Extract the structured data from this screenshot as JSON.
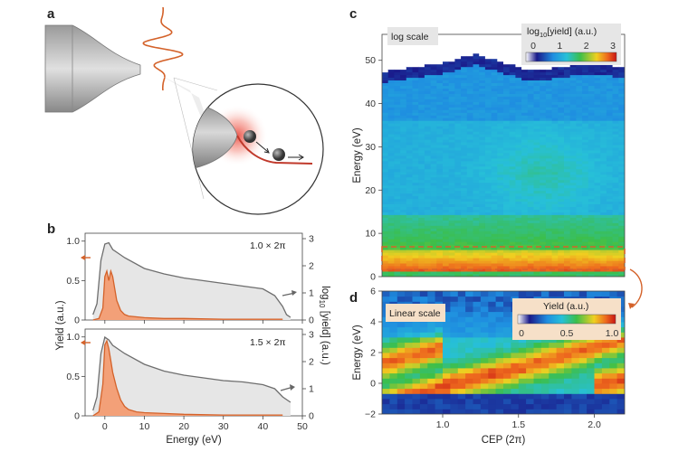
{
  "panels": {
    "a": "a",
    "b": "b",
    "c": "c",
    "d": "d"
  },
  "colors": {
    "orange": "#d4622a",
    "orange_fill": "#f3a078",
    "gray_line": "#6e6e6e",
    "gray_fill": "#e6e6e6",
    "tip_gray": "#9a9a9a"
  },
  "chart_data": [
    {
      "id": "b-top",
      "type": "line",
      "annotation": "1.0 × 2π",
      "xlim": [
        -5,
        50
      ],
      "ylim_left": [
        0,
        1.1
      ],
      "ylim_right": [
        0,
        3.2
      ],
      "series": [
        {
          "name": "yield (linear)",
          "axis": "left",
          "x": [
            -3,
            -1.5,
            -0.5,
            0,
            0.5,
            1,
            1.5,
            2,
            2.5,
            3,
            4,
            5,
            6,
            8,
            10,
            15,
            20,
            30,
            40,
            45
          ],
          "y": [
            0,
            0.02,
            0.15,
            0.55,
            0.62,
            0.5,
            0.62,
            0.55,
            0.4,
            0.25,
            0.12,
            0.07,
            0.05,
            0.04,
            0.03,
            0.02,
            0.02,
            0.01,
            0.01,
            0.01
          ]
        },
        {
          "name": "log10 yield",
          "axis": "right",
          "x": [
            -3,
            -2,
            -1,
            0,
            1,
            2,
            3,
            5,
            10,
            15,
            20,
            25,
            30,
            35,
            40,
            43,
            45,
            46,
            47
          ],
          "y": [
            0.2,
            0.6,
            2.2,
            2.8,
            2.85,
            2.6,
            2.5,
            2.3,
            1.9,
            1.7,
            1.55,
            1.45,
            1.35,
            1.25,
            1.15,
            0.9,
            0.5,
            0.2,
            0.1
          ]
        }
      ]
    },
    {
      "id": "b-bottom",
      "type": "line",
      "annotation": "1.5 × 2π",
      "xlim": [
        -5,
        50
      ],
      "ylim_left": [
        0,
        1.1
      ],
      "ylim_right": [
        0,
        3.2
      ],
      "series": [
        {
          "name": "yield (linear)",
          "axis": "left",
          "x": [
            -3,
            -1.5,
            -0.5,
            0,
            0.5,
            1,
            1.5,
            2,
            3,
            4,
            5,
            6,
            8,
            10,
            15,
            20,
            30,
            40,
            45
          ],
          "y": [
            0,
            0.05,
            0.4,
            0.9,
            0.95,
            0.85,
            0.7,
            0.55,
            0.35,
            0.2,
            0.12,
            0.08,
            0.05,
            0.04,
            0.03,
            0.02,
            0.01,
            0.01,
            0.01
          ]
        },
        {
          "name": "log10 yield",
          "axis": "right",
          "x": [
            -3,
            -2,
            -1,
            0,
            1,
            2,
            3,
            5,
            10,
            15,
            20,
            25,
            30,
            35,
            40,
            43,
            45,
            46,
            47
          ],
          "y": [
            0.2,
            0.7,
            2.3,
            2.9,
            2.8,
            2.6,
            2.5,
            2.3,
            1.9,
            1.65,
            1.5,
            1.4,
            1.3,
            1.25,
            1.15,
            1.0,
            0.7,
            0.6,
            0.5
          ]
        }
      ],
      "xlabel": "Energy (eV)",
      "xticks": [
        0,
        10,
        20,
        30,
        40,
        50
      ],
      "yticks_left": [
        "0",
        "0.5",
        "1.0"
      ],
      "yticks_right": [
        "0",
        "1",
        "2",
        "3"
      ],
      "ylabel_left": "Yield (a.u.)",
      "ylabel_right": "log10 [yield] (a.u.)"
    },
    {
      "id": "c",
      "type": "heatmap",
      "badge": "log scale",
      "ylabel": "Energy (eV)",
      "yticks": [
        0,
        10,
        20,
        30,
        40,
        50
      ],
      "ylim": [
        0,
        56
      ],
      "xlim": [
        0.6,
        2.2
      ],
      "colorbar_title": "log10[yield] (a.u.)",
      "colorbar_ticks": [
        "0",
        "1",
        "2",
        "3"
      ],
      "cutoff_energy_eV": [
        46,
        47,
        48,
        50,
        48,
        46,
        47,
        48,
        47
      ],
      "highlight_box_eV": [
        0,
        5
      ]
    },
    {
      "id": "d",
      "type": "heatmap",
      "badge": "Linear scale",
      "ylabel": "Energy (eV)",
      "xlabel": "CEP (2π)",
      "yticks": [
        -2,
        0,
        2,
        4,
        6
      ],
      "xticks": [
        "1.0",
        "1.5",
        "2.0"
      ],
      "ylim": [
        -2,
        6
      ],
      "xlim": [
        0.6,
        2.2
      ],
      "colorbar_title": "Yield (a.u.)",
      "colorbar_ticks": [
        "0",
        "0.5",
        "1.0"
      ]
    }
  ],
  "labels": {
    "b_xlabel": "Energy (eV)",
    "b_ylabel_left": "Yield (a.u.)",
    "b_ylabel_right_main": "log",
    "b_ylabel_right_sub": "10",
    "b_ylabel_right_rest": " [yield] (a.u.)",
    "c_badge": "log scale",
    "c_cbar_pre": "log",
    "c_cbar_sub": "10",
    "c_cbar_post": "[yield] (a.u.)",
    "d_badge": "Linear scale",
    "d_cbar": "Yield (a.u.)",
    "energy_label": "Energy (eV)",
    "cep_label": "CEP (2π)",
    "annot_top": "1.0 × 2π",
    "annot_bottom": "1.5 × 2π"
  },
  "ticks": {
    "b_x": [
      "0",
      "10",
      "20",
      "30",
      "40",
      "50"
    ],
    "b_yl_top": [
      "0",
      "0.5",
      "1.0"
    ],
    "b_yr_top": [
      "0",
      "1",
      "2",
      "3"
    ],
    "b_yl_bot": [
      "0",
      "0.5",
      "1.0"
    ],
    "b_yr_bot": [
      "0",
      "1",
      "2",
      "3"
    ],
    "c_y": [
      "0",
      "10",
      "20",
      "30",
      "40",
      "50"
    ],
    "c_cb": [
      "0",
      "1",
      "2",
      "3"
    ],
    "d_y": [
      "−2",
      "0",
      "2",
      "4",
      "6"
    ],
    "d_x": [
      "1.0",
      "1.5",
      "2.0"
    ],
    "d_cb": [
      "0",
      "0.5",
      "1.0"
    ]
  }
}
